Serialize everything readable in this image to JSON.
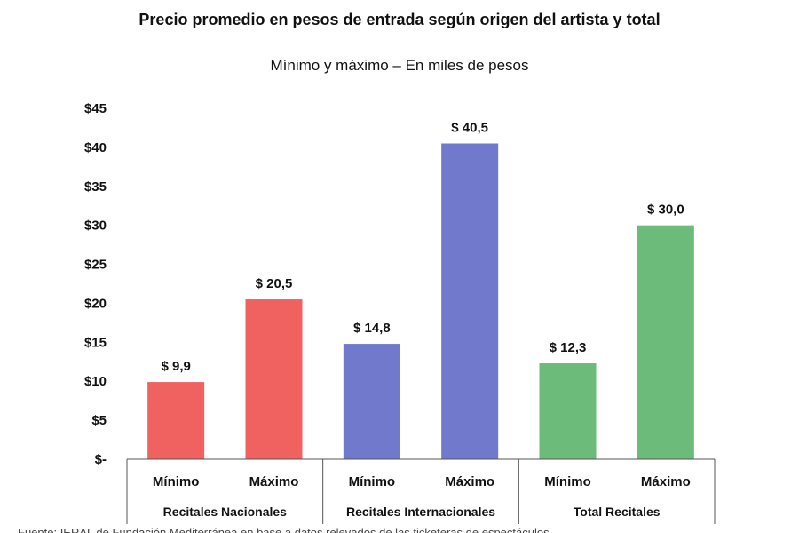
{
  "chart_data": {
    "type": "bar",
    "title": "Precio promedio en pesos de entrada según origen del artista y total",
    "subtitle": "Mínimo y máximo – En miles de pesos",
    "categories": [
      "Mínimo",
      "Máximo",
      "Mínimo",
      "Máximo",
      "Mínimo",
      "Máximo"
    ],
    "groups": [
      {
        "label": "Recitales Nacionales",
        "color": "#f0625f"
      },
      {
        "label": "Recitales Internacionales",
        "color": "#7079cc"
      },
      {
        "label": "Total Recitales",
        "color": "#6dbb7b"
      }
    ],
    "values": [
      9.9,
      20.5,
      14.8,
      40.5,
      12.3,
      30.0
    ],
    "value_labels": [
      "$ 9,9",
      "$ 20,5",
      "$ 14,8",
      "$ 40,5",
      "$ 12,3",
      "$ 30,0"
    ],
    "ylim": [
      0,
      45
    ],
    "yticks": [
      0,
      5,
      10,
      15,
      20,
      25,
      30,
      35,
      40,
      45
    ],
    "ytick_labels": [
      "$-",
      "$5",
      "$10",
      "$15",
      "$20",
      "$25",
      "$30",
      "$35",
      "$40",
      "$45"
    ],
    "grid": false,
    "legend": "none",
    "xlabel": "",
    "ylabel": ""
  },
  "footnote": "Fuente: IERAL de Fundación Mediterránea en base a datos relevados de las ticketeras de espectáculos"
}
